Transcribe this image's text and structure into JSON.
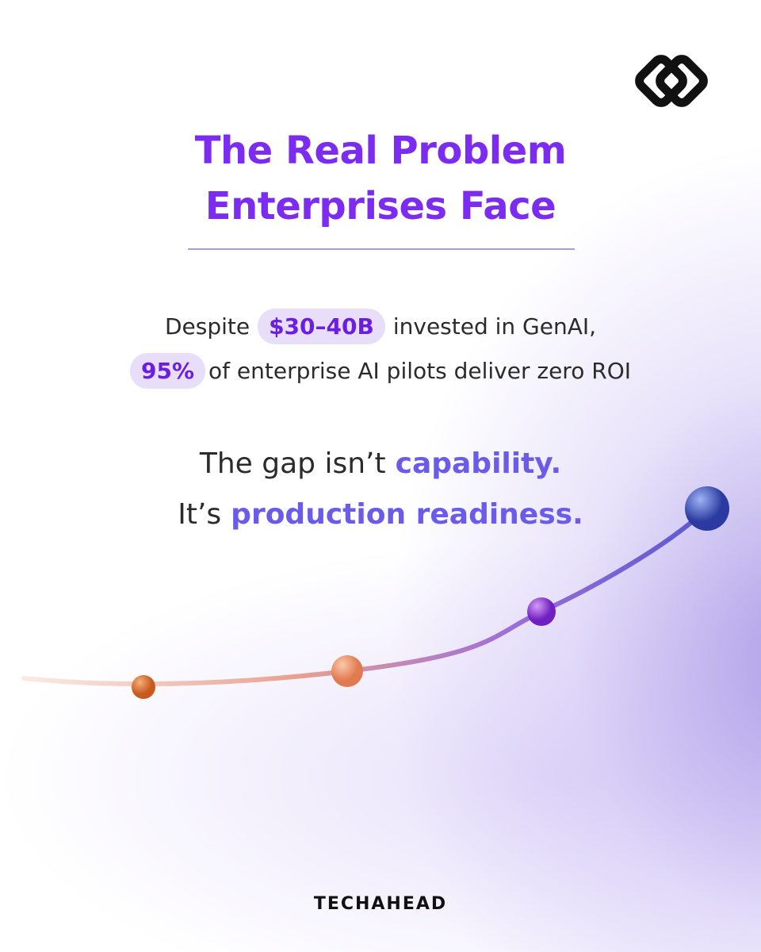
{
  "title": {
    "lines": [
      "The Real Problem",
      "Enterprises Face"
    ]
  },
  "statement": {
    "line1": {
      "before": "Despite",
      "highlight": "$30–40B",
      "after": "invested in GenAI,"
    },
    "line2": {
      "highlight": "95%",
      "after": "of enterprise AI pilots deliver zero ROI"
    }
  },
  "gap": {
    "line1": {
      "before": "The gap isn’t",
      "emphasis": "capability."
    },
    "line2": {
      "before": "It’s",
      "emphasis": "production readiness."
    }
  },
  "brand": "TECHAHEAD"
}
